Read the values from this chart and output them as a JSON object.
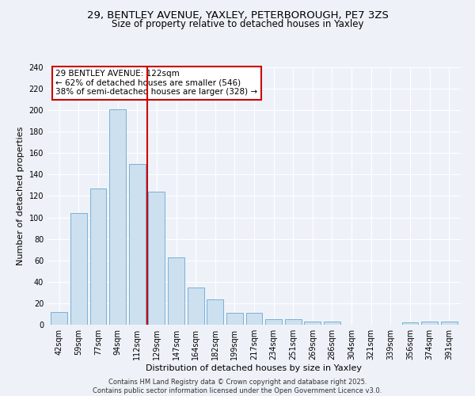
{
  "title1": "29, BENTLEY AVENUE, YAXLEY, PETERBOROUGH, PE7 3ZS",
  "title2": "Size of property relative to detached houses in Yaxley",
  "xlabel": "Distribution of detached houses by size in Yaxley",
  "ylabel": "Number of detached properties",
  "bar_labels": [
    "42sqm",
    "59sqm",
    "77sqm",
    "94sqm",
    "112sqm",
    "129sqm",
    "147sqm",
    "164sqm",
    "182sqm",
    "199sqm",
    "217sqm",
    "234sqm",
    "251sqm",
    "269sqm",
    "286sqm",
    "304sqm",
    "321sqm",
    "339sqm",
    "356sqm",
    "374sqm",
    "391sqm"
  ],
  "bar_values": [
    12,
    104,
    127,
    201,
    150,
    124,
    63,
    35,
    24,
    11,
    11,
    5,
    5,
    3,
    3,
    0,
    0,
    0,
    2,
    3,
    3
  ],
  "bar_color": "#cce0f0",
  "bar_edgecolor": "#7ab0d4",
  "vline_x": 4.5,
  "vline_color": "#cc0000",
  "annotation_text": "29 BENTLEY AVENUE: 122sqm\n← 62% of detached houses are smaller (546)\n38% of semi-detached houses are larger (328) →",
  "annotation_box_color": "#ffffff",
  "annotation_box_edgecolor": "#cc0000",
  "ylim": [
    0,
    240
  ],
  "yticks": [
    0,
    20,
    40,
    60,
    80,
    100,
    120,
    140,
    160,
    180,
    200,
    220,
    240
  ],
  "footer": "Contains HM Land Registry data © Crown copyright and database right 2025.\nContains public sector information licensed under the Open Government Licence v3.0.",
  "bg_color": "#eef2f8",
  "grid_color": "#ffffff",
  "font_family": "DejaVu Sans",
  "title1_fontsize": 9.5,
  "title2_fontsize": 8.5,
  "xlabel_fontsize": 8,
  "ylabel_fontsize": 8,
  "tick_fontsize": 7,
  "footer_fontsize": 6,
  "annot_fontsize": 7.5
}
